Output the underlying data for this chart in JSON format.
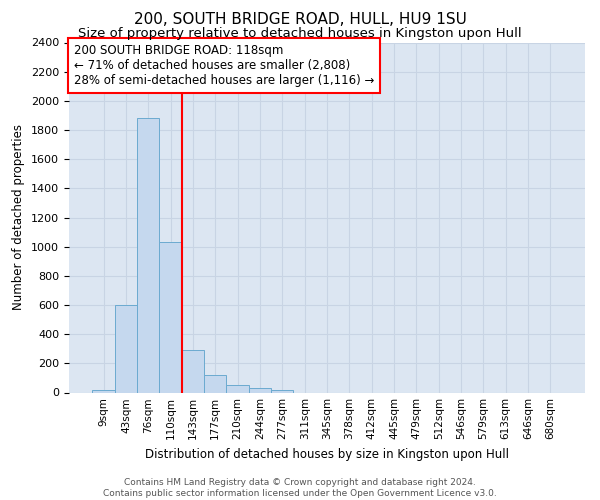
{
  "title": "200, SOUTH BRIDGE ROAD, HULL, HU9 1SU",
  "subtitle": "Size of property relative to detached houses in Kingston upon Hull",
  "xlabel": "Distribution of detached houses by size in Kingston upon Hull",
  "ylabel": "Number of detached properties",
  "footer_line1": "Contains HM Land Registry data © Crown copyright and database right 2024.",
  "footer_line2": "Contains public sector information licensed under the Open Government Licence v3.0.",
  "bins": [
    "9sqm",
    "43sqm",
    "76sqm",
    "110sqm",
    "143sqm",
    "177sqm",
    "210sqm",
    "244sqm",
    "277sqm",
    "311sqm",
    "345sqm",
    "378sqm",
    "412sqm",
    "445sqm",
    "479sqm",
    "512sqm",
    "546sqm",
    "579sqm",
    "613sqm",
    "646sqm",
    "680sqm"
  ],
  "values": [
    20,
    600,
    1880,
    1030,
    290,
    120,
    50,
    30,
    20,
    0,
    0,
    0,
    0,
    0,
    0,
    0,
    0,
    0,
    0,
    0,
    0
  ],
  "bar_color": "#c5d8ee",
  "bar_edge_color": "#6baad0",
  "bar_width": 1.0,
  "vline_color": "red",
  "ylim": [
    0,
    2400
  ],
  "yticks": [
    0,
    200,
    400,
    600,
    800,
    1000,
    1200,
    1400,
    1600,
    1800,
    2000,
    2200,
    2400
  ],
  "annotation_title": "200 SOUTH BRIDGE ROAD: 118sqm",
  "annotation_line1": "← 71% of detached houses are smaller (2,808)",
  "annotation_line2": "28% of semi-detached houses are larger (1,116) →",
  "grid_color": "#c8d4e4",
  "bg_color": "#dce6f2",
  "title_fontsize": 11,
  "subtitle_fontsize": 9.5,
  "annot_fontsize": 8.5
}
